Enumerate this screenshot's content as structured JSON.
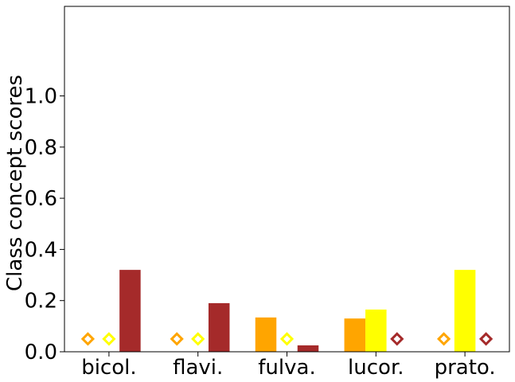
{
  "chart_data": {
    "type": "bar",
    "ylabel": "Class concept scores",
    "categories": [
      "bicol.",
      "flavi.",
      "fulva.",
      "lucor.",
      "prato."
    ],
    "ylim": [
      0,
      1.35
    ],
    "yticks": [
      "0.0",
      "0.2",
      "0.4",
      "0.6",
      "0.8",
      "1.0"
    ],
    "grid": false,
    "series": [
      {
        "color": "#ffa500",
        "values": [
          0,
          0,
          0.134,
          0.13,
          0
        ]
      },
      {
        "color": "#ffff00",
        "values": [
          0,
          0,
          0,
          0.165,
          0.32
        ]
      },
      {
        "color": "#a52a2a",
        "values": [
          0.32,
          0.19,
          0.025,
          0,
          0
        ]
      }
    ],
    "markers": {
      "shape": "hollow diamond",
      "value": 0.05,
      "note_series_index_per_category": [
        [
          0,
          1
        ],
        [
          0,
          1
        ],
        [
          1
        ],
        [
          2
        ],
        [
          0,
          2
        ]
      ]
    }
  }
}
